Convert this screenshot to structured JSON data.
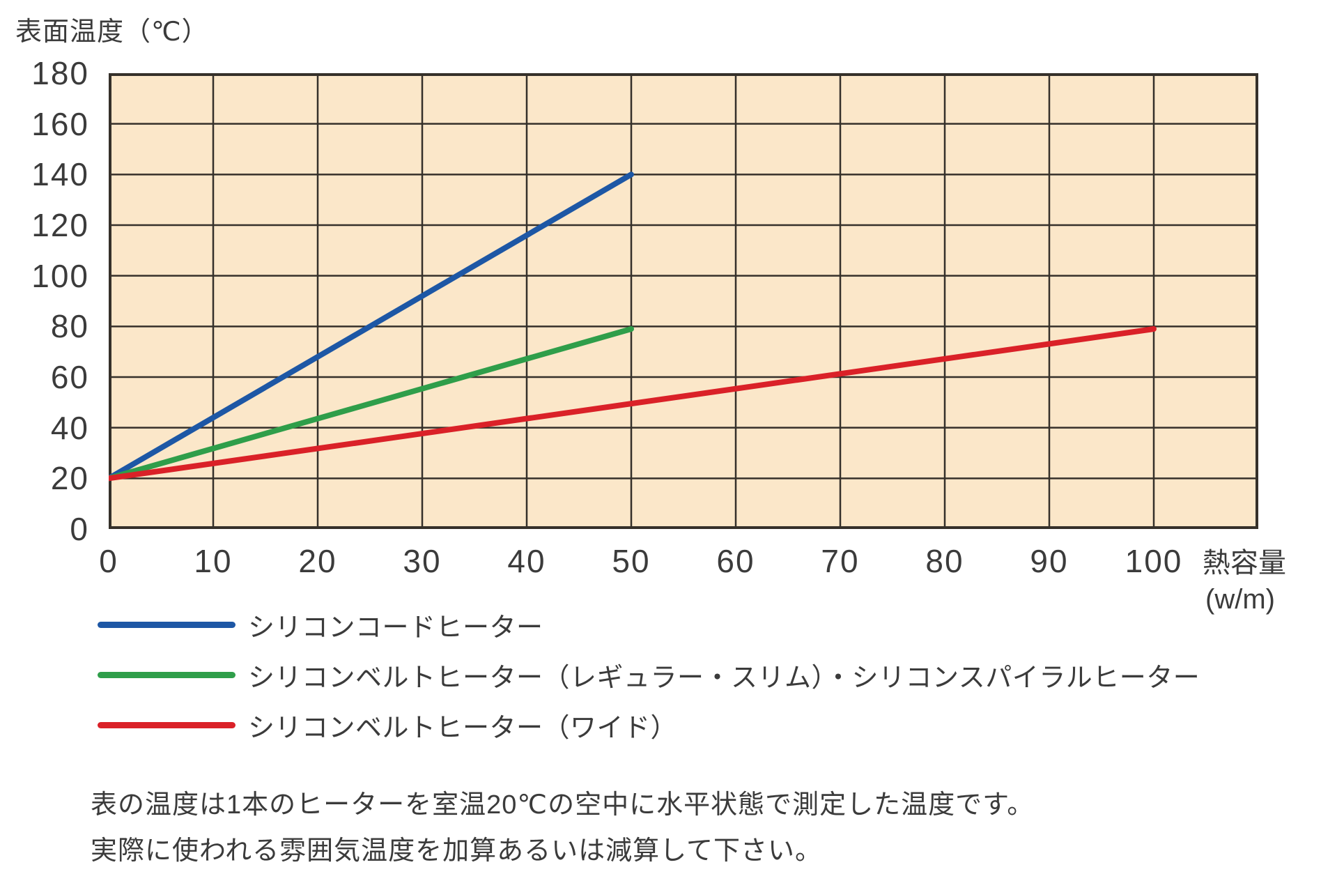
{
  "chart_data": {
    "type": "line",
    "title": "表面温度（℃）",
    "xlabel": "熱容量",
    "xlabel_unit": "(w/m)",
    "xlim": [
      0,
      110
    ],
    "ylim": [
      0,
      180
    ],
    "x_ticks": [
      0,
      10,
      20,
      30,
      40,
      50,
      60,
      70,
      80,
      90,
      100
    ],
    "x_gridlines": [
      0,
      10,
      20,
      30,
      40,
      50,
      60,
      70,
      80,
      90,
      100,
      110
    ],
    "y_ticks": [
      0,
      20,
      40,
      60,
      80,
      100,
      120,
      140,
      160,
      180
    ],
    "grid": true,
    "legend_position": "below-left",
    "plot_bg": "#fbe7c9",
    "grid_color": "#35302a",
    "axis_text_color": "#3b3b3b",
    "series": [
      {
        "name": "シリコンコードヒーター",
        "color": "#1d57a5",
        "points": [
          [
            0,
            20
          ],
          [
            50,
            140
          ]
        ]
      },
      {
        "name": "シリコンベルトヒーター（レギュラー・スリム）・シリコンスパイラルヒーター",
        "color": "#2f9e4a",
        "points": [
          [
            0,
            20
          ],
          [
            50,
            79
          ]
        ]
      },
      {
        "name": "シリコンベルトヒーター（ワイド）",
        "color": "#da2128",
        "points": [
          [
            0,
            20
          ],
          [
            100,
            79
          ]
        ]
      }
    ]
  },
  "note": {
    "line1": "表の温度は1本のヒーターを室温20℃の空中に水平状態で測定した温度です。",
    "line2": "実際に使われる雰囲気温度を加算あるいは減算して下さい。"
  }
}
